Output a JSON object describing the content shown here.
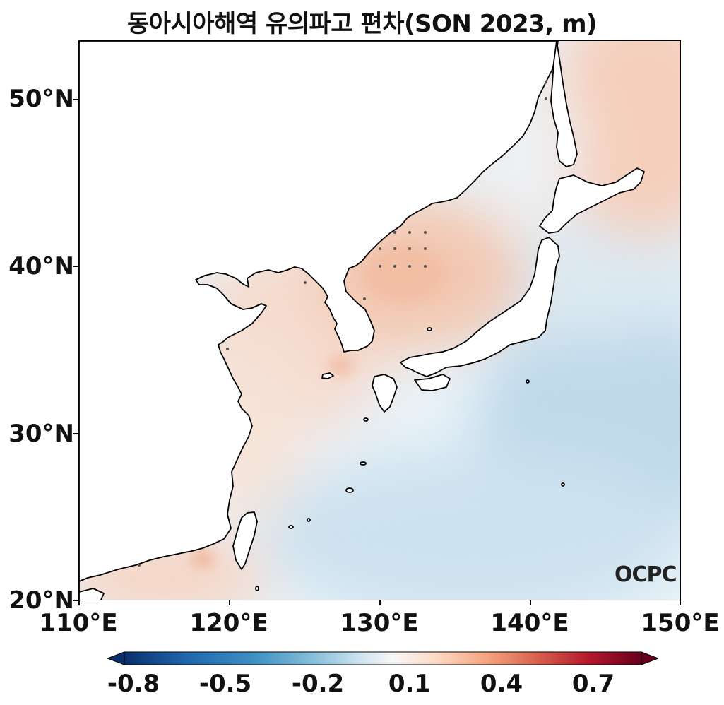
{
  "title": "동아시아해역 유의파고 편차(SON 2023, m)",
  "logo_text": "OCPC",
  "map": {
    "lon_range": [
      110,
      150
    ],
    "lat_range": [
      20,
      53.5
    ],
    "lat_ticks": [
      "20°N",
      "30°N",
      "40°N",
      "50°N"
    ],
    "lon_ticks": [
      "110°E",
      "120°E",
      "130°E",
      "140°E",
      "150°E"
    ]
  },
  "colorbar": {
    "colormap": "RdBu_r",
    "range": [
      -0.9,
      0.9
    ],
    "extend": "both",
    "tick_labels": [
      "-0.8",
      "-0.5",
      "-0.2",
      "0.1",
      "0.4",
      "0.7"
    ],
    "colors": [
      "#08306b",
      "#2166ac",
      "#4393c3",
      "#92c5de",
      "#d1e5f0",
      "#f7f7f7",
      "#fddbc7",
      "#f4a582",
      "#d6604d",
      "#b2182b",
      "#67001f"
    ]
  }
}
